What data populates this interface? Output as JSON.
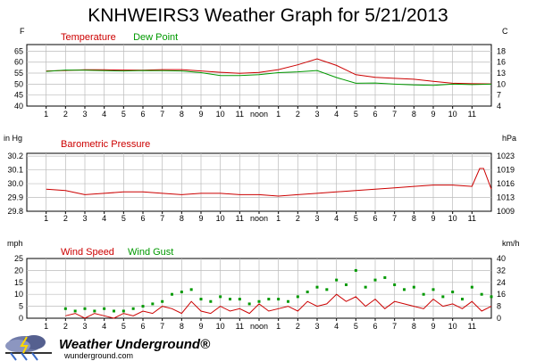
{
  "title": "KNHWEIRS3 Weather Graph for 5/21/2013",
  "x_ticks": [
    "1",
    "2",
    "3",
    "4",
    "5",
    "6",
    "7",
    "8",
    "9",
    "10",
    "11",
    "noon",
    "1",
    "2",
    "3",
    "4",
    "5",
    "6",
    "7",
    "8",
    "9",
    "10",
    "11"
  ],
  "colors": {
    "red": "#cc0000",
    "green": "#009900",
    "grid": "#bbbbbb"
  },
  "logo": {
    "name": "Weather Underground®",
    "url": "wunderground.com"
  },
  "chart_data": [
    {
      "type": "line",
      "units_left": "F",
      "units_right": "C",
      "legend": [
        {
          "name": "Temperature",
          "color": "#cc0000"
        },
        {
          "name": "Dew Point",
          "color": "#009900"
        }
      ],
      "ylim": [
        40,
        68
      ],
      "yticks_left": [
        "65",
        "60",
        "55",
        "50",
        "45",
        "40"
      ],
      "yticks_right": [
        "18",
        "16",
        "13",
        "10",
        "7",
        "4"
      ],
      "x": [
        0,
        1,
        2,
        3,
        4,
        5,
        6,
        7,
        8,
        9,
        10,
        11,
        12,
        13,
        14,
        15,
        16,
        17,
        18,
        19,
        20,
        21,
        22,
        23
      ],
      "series": [
        {
          "name": "Temperature",
          "values": [
            56,
            56.2,
            56.5,
            56.5,
            56.4,
            56.3,
            56.6,
            56.6,
            56,
            55.4,
            54.9,
            55.3,
            56.6,
            58.8,
            61.5,
            58.5,
            54.3,
            53.1,
            52.6,
            52.2,
            51.3,
            50.4,
            50.2,
            50.1
          ]
        },
        {
          "name": "Dew Point",
          "values": [
            55.8,
            56.4,
            56.3,
            56.1,
            56,
            56.2,
            56.1,
            56,
            55.2,
            53.9,
            53.9,
            54.3,
            55.2,
            55.6,
            56.2,
            53,
            50.4,
            50.5,
            50,
            49.6,
            49.4,
            50,
            49.8,
            50
          ]
        }
      ]
    },
    {
      "type": "line",
      "units_left": "in Hg",
      "units_right": "hPa",
      "legend": [
        {
          "name": "Barometric Pressure",
          "color": "#cc0000"
        }
      ],
      "ylim": [
        29.8,
        30.22
      ],
      "yticks_left": [
        "30.2",
        "30.1",
        "30.0",
        "29.9",
        "29.8"
      ],
      "yticks_right": [
        "1023",
        "1019",
        "1016",
        "1013",
        "1009"
      ],
      "x": [
        0,
        1,
        2,
        3,
        4,
        5,
        6,
        7,
        8,
        9,
        10,
        11,
        12,
        13,
        14,
        15,
        16,
        17,
        18,
        19,
        20,
        21,
        22,
        22.4,
        22.6,
        23
      ],
      "series": [
        {
          "name": "Barometric Pressure",
          "values": [
            29.96,
            29.95,
            29.92,
            29.93,
            29.94,
            29.94,
            29.93,
            29.92,
            29.93,
            29.93,
            29.92,
            29.92,
            29.91,
            29.92,
            29.93,
            29.94,
            29.95,
            29.96,
            29.97,
            29.98,
            29.99,
            29.99,
            29.98,
            30.11,
            30.11,
            29.96
          ]
        }
      ]
    },
    {
      "type": "line",
      "units_left": "mph",
      "units_right": "km/h",
      "legend": [
        {
          "name": "Wind Speed",
          "color": "#cc0000"
        },
        {
          "name": "Wind Gust",
          "color": "#009900"
        }
      ],
      "ylim": [
        0,
        25
      ],
      "yticks_left": [
        "25",
        "20",
        "15",
        "10",
        "5",
        "0"
      ],
      "yticks_right": [
        "40",
        "32",
        "24",
        "16",
        "8",
        "0"
      ],
      "series": [
        {
          "name": "Wind Speed",
          "x": [
            1,
            1.5,
            2,
            2.5,
            3,
            3.5,
            4,
            4.5,
            5,
            5.5,
            6,
            6.5,
            7,
            7.5,
            8,
            8.5,
            9,
            9.5,
            10,
            10.5,
            11,
            11.5,
            12,
            12.5,
            13,
            13.5,
            14,
            14.5,
            15,
            15.5,
            16,
            16.5,
            17,
            17.5,
            18,
            18.5,
            19,
            19.5,
            20,
            20.5,
            21,
            21.5,
            22,
            22.5,
            23
          ],
          "values": [
            1,
            2,
            0,
            2,
            1,
            0,
            2,
            1,
            3,
            2,
            5,
            4,
            2,
            7,
            3,
            2,
            5,
            3,
            4,
            2,
            6,
            3,
            4,
            5,
            3,
            7,
            5,
            6,
            10,
            7,
            9,
            5,
            8,
            4,
            7,
            6,
            5,
            4,
            8,
            5,
            6,
            4,
            7,
            3,
            5
          ]
        },
        {
          "name": "Wind Gust",
          "x": [
            1,
            1.5,
            2,
            2.5,
            3,
            3.5,
            4,
            4.5,
            5,
            5.5,
            6,
            6.5,
            7,
            7.5,
            8,
            8.5,
            9,
            9.5,
            10,
            10.5,
            11,
            11.5,
            12,
            12.5,
            13,
            13.5,
            14,
            14.5,
            15,
            15.5,
            16,
            16.5,
            17,
            17.5,
            18,
            18.5,
            19,
            19.5,
            20,
            20.5,
            21,
            21.5,
            22,
            22.5,
            23
          ],
          "values": [
            4,
            3,
            4,
            3,
            4,
            3,
            3,
            4,
            5,
            6,
            7,
            10,
            11,
            12,
            8,
            7,
            9,
            8,
            8,
            6,
            7,
            8,
            8,
            7,
            9,
            11,
            13,
            12,
            16,
            14,
            20,
            13,
            16,
            17,
            14,
            12,
            13,
            10,
            12,
            9,
            11,
            8,
            13,
            10,
            9
          ]
        }
      ]
    }
  ]
}
